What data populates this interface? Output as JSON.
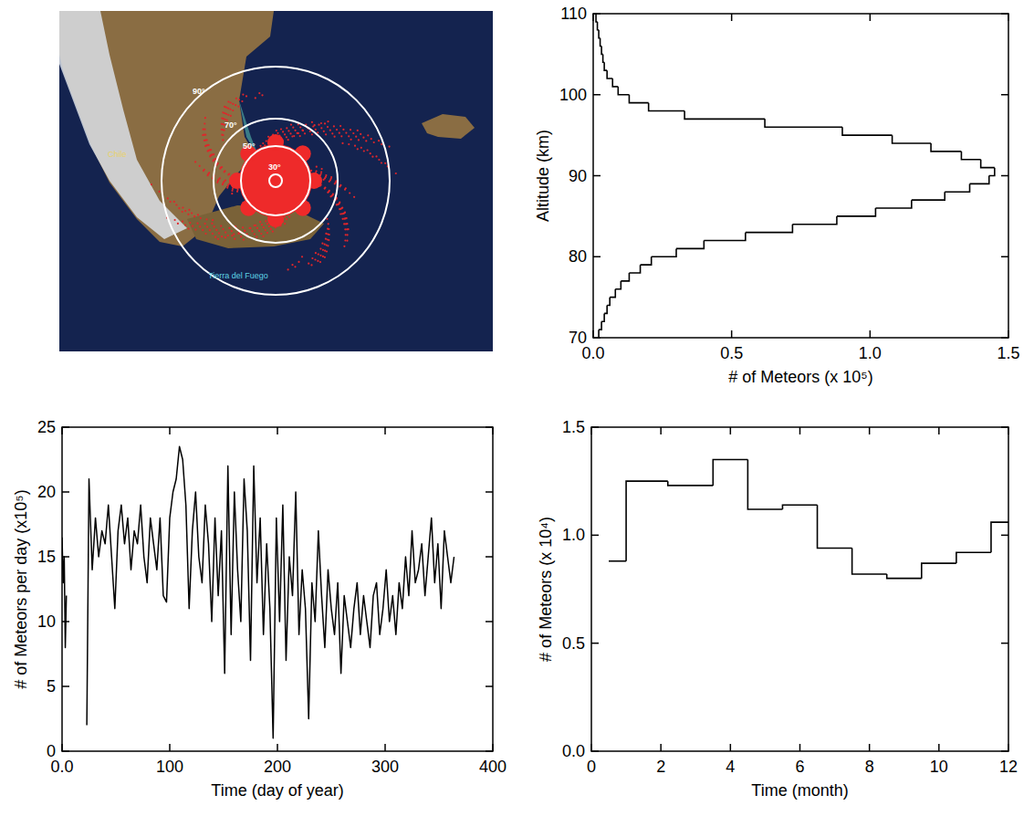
{
  "map": {
    "circle_labels": [
      "30°",
      "50°",
      "70°",
      "90°"
    ],
    "place_labels": [
      "Chile",
      "Tierra del Fuego"
    ]
  },
  "chart_data": [
    {
      "type": "histogram",
      "orientation": "horizontal",
      "x_label": "# of Meteors (x 10⁵)",
      "y_label": "Altitude (km)",
      "bins": [
        70,
        71,
        72,
        73,
        74,
        75,
        76,
        77,
        78,
        79,
        80,
        81,
        82,
        83,
        84,
        85,
        86,
        87,
        88,
        89,
        90,
        91,
        92,
        93,
        94,
        95,
        96,
        97,
        98,
        99,
        100,
        101,
        102,
        103,
        104,
        105,
        106,
        107,
        108,
        109,
        110
      ],
      "values": [
        0.02,
        0.03,
        0.04,
        0.05,
        0.06,
        0.08,
        0.1,
        0.13,
        0.17,
        0.21,
        0.3,
        0.4,
        0.55,
        0.72,
        0.88,
        1.02,
        1.15,
        1.27,
        1.36,
        1.43,
        1.45,
        1.4,
        1.33,
        1.22,
        1.08,
        0.9,
        0.62,
        0.33,
        0.2,
        0.13,
        0.09,
        0.07,
        0.05,
        0.04,
        0.035,
        0.03,
        0.025,
        0.02,
        0.015,
        0.01
      ],
      "color": "#000000",
      "xlim": [
        0,
        1.5
      ],
      "xticks": [
        {
          "value": 0,
          "label": "0.0"
        },
        0.5,
        {
          "value": 1,
          "label": "1.0"
        },
        1.5
      ],
      "ylim": [
        70,
        110
      ],
      "yticks": [
        70,
        80,
        90,
        100,
        110
      ],
      "grid": false
    },
    {
      "type": "line",
      "x_label": "Time (day of year)",
      "y_label": "# of Meteors per day (x10⁵)",
      "x": [
        0,
        1,
        2,
        3,
        4,
        12,
        23,
        25,
        28,
        31,
        34,
        37,
        40,
        43,
        46,
        49,
        52,
        55,
        58,
        61,
        64,
        67,
        70,
        73,
        76,
        79,
        82,
        85,
        88,
        91,
        94,
        97,
        100,
        103,
        106,
        109,
        112,
        115,
        118,
        121,
        124,
        127,
        130,
        133,
        136,
        139,
        142,
        145,
        148,
        151,
        154,
        157,
        160,
        163,
        166,
        169,
        172,
        175,
        178,
        181,
        184,
        187,
        190,
        193,
        196,
        199,
        202,
        205,
        208,
        211,
        214,
        217,
        220,
        223,
        226,
        229,
        232,
        235,
        238,
        241,
        244,
        247,
        250,
        253,
        256,
        259,
        262,
        265,
        268,
        271,
        274,
        277,
        280,
        283,
        286,
        289,
        292,
        295,
        298,
        301,
        304,
        307,
        310,
        313,
        316,
        319,
        322,
        325,
        328,
        331,
        334,
        337,
        340,
        343,
        346,
        349,
        352,
        355,
        358,
        361,
        364
      ],
      "values": [
        16.5,
        13,
        15,
        8,
        12,
        null,
        2,
        21,
        14,
        18,
        15,
        17,
        16,
        19,
        15,
        11,
        17,
        19,
        16,
        18,
        14,
        17,
        16,
        19,
        15,
        13,
        18,
        16,
        14,
        18,
        12,
        11.5,
        18,
        20,
        21,
        23.5,
        22.5,
        19,
        11,
        17,
        20,
        15,
        13,
        19,
        16,
        10,
        18,
        12,
        17,
        6,
        22,
        9,
        20,
        14,
        10,
        21,
        17,
        7,
        22,
        13,
        18,
        9,
        16,
        11,
        1,
        18,
        10,
        19,
        7,
        15,
        12,
        20,
        9,
        14,
        11,
        2.5,
        13,
        10,
        17,
        12,
        8,
        14,
        11,
        9,
        13,
        6,
        12,
        10,
        8,
        11,
        13,
        9,
        12,
        10,
        8,
        12,
        13,
        9,
        11,
        14,
        10,
        12,
        9,
        13,
        11,
        15,
        12,
        17,
        13,
        14,
        16,
        12,
        15,
        18,
        13,
        16,
        11,
        17,
        15,
        13,
        15
      ],
      "color": "#000000",
      "xlim": [
        0,
        400
      ],
      "xticks": [
        {
          "value": 0,
          "label": "0.0"
        },
        100,
        200,
        300,
        400
      ],
      "ylim": [
        0,
        25
      ],
      "yticks": [
        0,
        5,
        10,
        15,
        20,
        25
      ],
      "grid": false
    },
    {
      "type": "histogram",
      "x_label": "Time (month)",
      "y_label": "# of Meteors (x 10⁴)",
      "bins": [
        0.5,
        1,
        2.2,
        3.5,
        4.5,
        5.5,
        6.5,
        7.5,
        8.5,
        9.5,
        10.5,
        11.5,
        12
      ],
      "values": [
        0.88,
        1.25,
        1.23,
        1.35,
        1.12,
        1.14,
        0.94,
        0.82,
        0.8,
        0.87,
        0.92,
        1.06
      ],
      "color": "#000000",
      "xlim": [
        0,
        12
      ],
      "xticks": [
        0,
        2,
        4,
        6,
        8,
        10,
        12
      ],
      "ylim": [
        0,
        1.5
      ],
      "yticks": [
        {
          "value": 0,
          "label": "0.0"
        },
        0.5,
        {
          "value": 1,
          "label": "1.0"
        },
        1.5
      ],
      "grid": false
    }
  ]
}
